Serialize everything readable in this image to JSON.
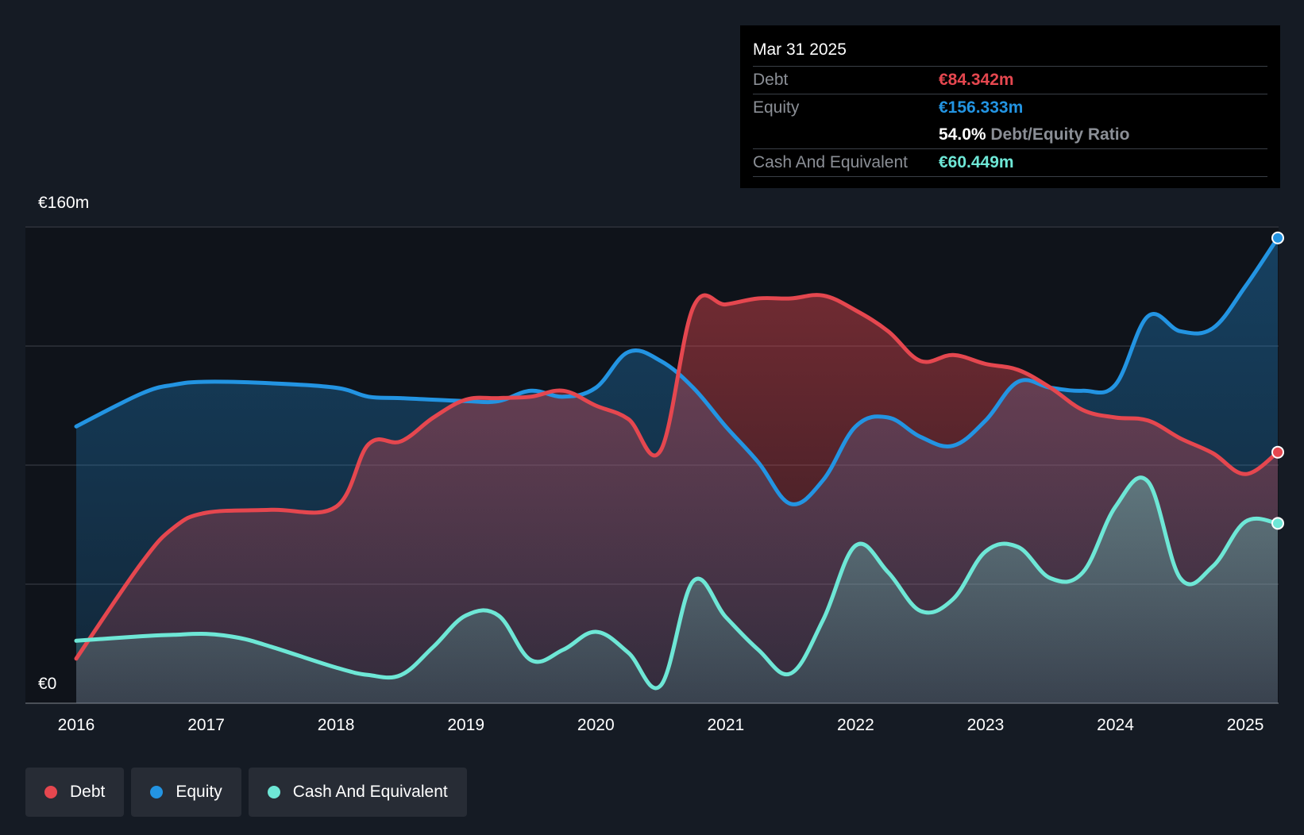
{
  "colors": {
    "debt": "#e5474f",
    "equity": "#2394e2",
    "cash": "#6ee7d6",
    "background": "#151b24"
  },
  "tooltip": {
    "date": "Mar 31 2025",
    "debt_label": "Debt",
    "debt_value": "€84.342m",
    "equity_label": "Equity",
    "equity_value": "€156.333m",
    "ratio_value": "54.0%",
    "ratio_label": "Debt/Equity Ratio",
    "cash_label": "Cash And Equivalent",
    "cash_value": "€60.449m"
  },
  "legend": {
    "debt": "Debt",
    "equity": "Equity",
    "cash": "Cash And Equivalent"
  },
  "chart_data": {
    "type": "area",
    "title": "",
    "xlabel": "",
    "ylabel": "",
    "xlim": [
      2016,
      2025.25
    ],
    "ylim": [
      0,
      160
    ],
    "y_tick_labels": [
      {
        "value": 0,
        "label": "€0"
      },
      {
        "value": 160,
        "label": "€160m"
      }
    ],
    "x_ticks": [
      2016,
      2017,
      2018,
      2019,
      2020,
      2021,
      2022,
      2023,
      2024,
      2025
    ],
    "grid": true,
    "legend_position": "bottom-left",
    "series": [
      {
        "name": "Debt",
        "color": "#e5474f",
        "points": [
          [
            2016.0,
            15
          ],
          [
            2016.5,
            47
          ],
          [
            2016.75,
            59
          ],
          [
            2017.0,
            64
          ],
          [
            2017.5,
            65
          ],
          [
            2018.0,
            66
          ],
          [
            2018.25,
            87
          ],
          [
            2018.5,
            88
          ],
          [
            2018.75,
            96
          ],
          [
            2019.0,
            102
          ],
          [
            2019.25,
            102.5
          ],
          [
            2019.5,
            103
          ],
          [
            2019.75,
            105
          ],
          [
            2020.0,
            100
          ],
          [
            2020.25,
            95.5
          ],
          [
            2020.5,
            85
          ],
          [
            2020.75,
            133
          ],
          [
            2021.0,
            134
          ],
          [
            2021.25,
            136
          ],
          [
            2021.5,
            136
          ],
          [
            2021.75,
            137
          ],
          [
            2022.0,
            132
          ],
          [
            2022.25,
            125
          ],
          [
            2022.5,
            115
          ],
          [
            2022.75,
            117
          ],
          [
            2023.0,
            114
          ],
          [
            2023.25,
            112
          ],
          [
            2023.5,
            106
          ],
          [
            2023.75,
            98.5
          ],
          [
            2024.0,
            96
          ],
          [
            2024.25,
            95
          ],
          [
            2024.5,
            89
          ],
          [
            2024.75,
            84
          ],
          [
            2025.0,
            77
          ],
          [
            2025.25,
            84.342
          ]
        ]
      },
      {
        "name": "Equity",
        "color": "#2394e2",
        "points": [
          [
            2016.0,
            93
          ],
          [
            2016.5,
            104
          ],
          [
            2016.75,
            107
          ],
          [
            2017.0,
            108
          ],
          [
            2017.5,
            107.5
          ],
          [
            2018.0,
            106
          ],
          [
            2018.25,
            103
          ],
          [
            2018.5,
            102.5
          ],
          [
            2019.0,
            101.5
          ],
          [
            2019.25,
            101.5
          ],
          [
            2019.5,
            105
          ],
          [
            2019.75,
            103
          ],
          [
            2020.0,
            106
          ],
          [
            2020.25,
            118
          ],
          [
            2020.5,
            115
          ],
          [
            2020.75,
            106
          ],
          [
            2021.0,
            93
          ],
          [
            2021.25,
            81
          ],
          [
            2021.5,
            67
          ],
          [
            2021.75,
            75
          ],
          [
            2022.0,
            93
          ],
          [
            2022.25,
            96
          ],
          [
            2022.5,
            89.5
          ],
          [
            2022.75,
            86.5
          ],
          [
            2023.0,
            95
          ],
          [
            2023.25,
            108
          ],
          [
            2023.5,
            106
          ],
          [
            2023.75,
            105
          ],
          [
            2024.0,
            107
          ],
          [
            2024.25,
            130
          ],
          [
            2024.5,
            125
          ],
          [
            2024.75,
            126
          ],
          [
            2025.0,
            140
          ],
          [
            2025.25,
            156.333
          ]
        ]
      },
      {
        "name": "Cash And Equivalent",
        "color": "#6ee7d6",
        "points": [
          [
            2016.0,
            21
          ],
          [
            2016.5,
            22.5
          ],
          [
            2016.75,
            23
          ],
          [
            2017.0,
            23.3
          ],
          [
            2017.25,
            22
          ],
          [
            2017.5,
            19
          ],
          [
            2018.0,
            12
          ],
          [
            2018.25,
            9.5
          ],
          [
            2018.5,
            9.5
          ],
          [
            2018.75,
            19
          ],
          [
            2019.0,
            29.5
          ],
          [
            2019.25,
            29.5
          ],
          [
            2019.5,
            14.5
          ],
          [
            2019.75,
            18
          ],
          [
            2020.0,
            24
          ],
          [
            2020.25,
            17
          ],
          [
            2020.5,
            6
          ],
          [
            2020.75,
            41
          ],
          [
            2021.0,
            29
          ],
          [
            2021.25,
            18
          ],
          [
            2021.5,
            10
          ],
          [
            2021.75,
            28
          ],
          [
            2022.0,
            53
          ],
          [
            2022.25,
            44
          ],
          [
            2022.5,
            31
          ],
          [
            2022.75,
            35
          ],
          [
            2023.0,
            51
          ],
          [
            2023.25,
            52.5
          ],
          [
            2023.5,
            42
          ],
          [
            2023.75,
            44
          ],
          [
            2024.0,
            66
          ],
          [
            2024.25,
            74.5
          ],
          [
            2024.5,
            42
          ],
          [
            2024.75,
            46
          ],
          [
            2025.0,
            61
          ],
          [
            2025.25,
            60.449
          ]
        ]
      }
    ]
  }
}
